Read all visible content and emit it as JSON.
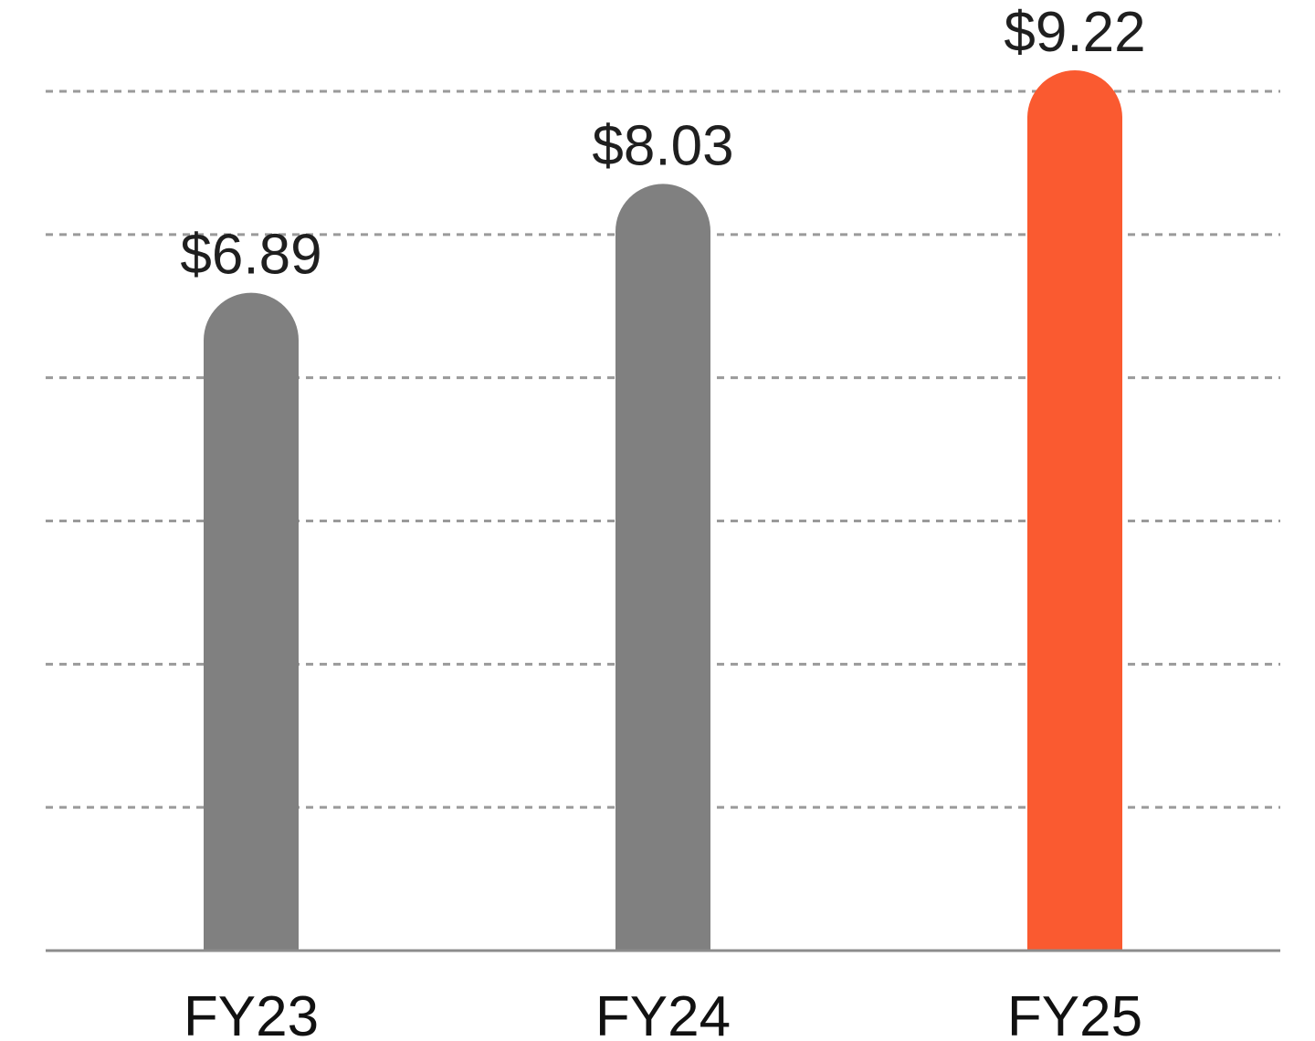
{
  "chart_data": {
    "type": "bar",
    "categories": [
      "FY23",
      "FY24",
      "FY25"
    ],
    "values": [
      6.89,
      8.03,
      9.22
    ],
    "data_labels": [
      "$6.89",
      "$8.03",
      "$9.22"
    ],
    "title": "",
    "xlabel": "",
    "ylabel": "",
    "ylim": [
      0,
      9
    ],
    "gridlines": "dashed horizontal",
    "bar_style": "rounded top",
    "colors": {
      "bar": "#808080",
      "highlight_bar": "#FA5A30",
      "highlight_category": "FY25",
      "grid": "#9a9a9a",
      "axis": "#8c8c8c"
    }
  }
}
